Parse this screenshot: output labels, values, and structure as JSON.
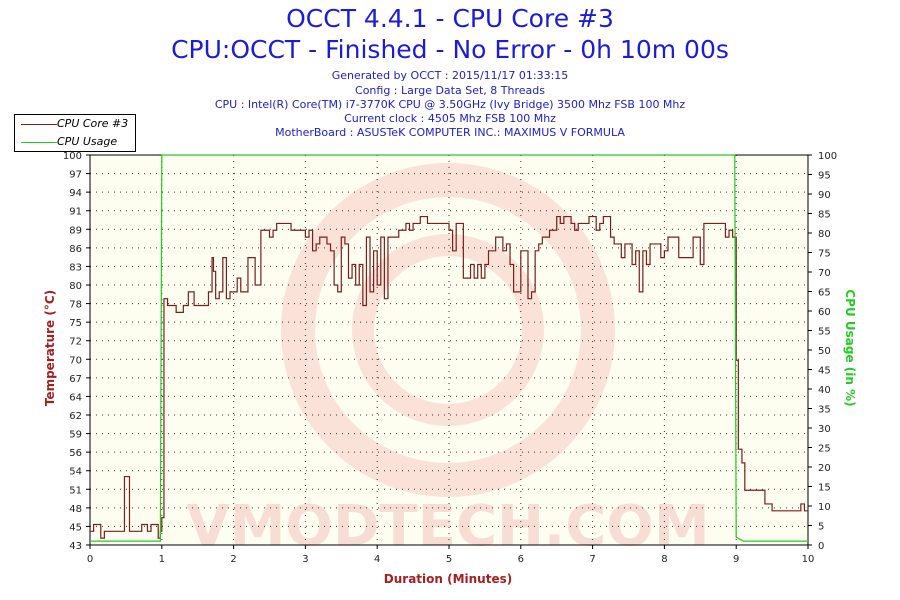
{
  "header": {
    "title_line1": "OCCT 4.4.1 - CPU Core #3",
    "title_line2": "CPU:OCCT - Finished - No Error - 0h 10m 00s",
    "generated_by": "Generated by OCCT : 2015/11/17 01:33:15",
    "config": "Config : Large Data Set, 8 Threads",
    "cpu": "CPU : Intel(R) Core(TM) i7-3770K CPU @ 3.50GHz (Ivy Bridge) 3500 Mhz FSB 100 Mhz",
    "current_clock": "Current clock : 4505 Mhz FSB 100 Mhz",
    "motherboard": "MotherBoard : ASUSTeK COMPUTER INC.: MAXIMUS V FORMULA"
  },
  "watermark_text": "VMODTECH.COM",
  "colors": {
    "title": "#1c1cd6",
    "core_line": "#7a1f1f",
    "usage_line": "#22cc22",
    "left_axis": "#a32020",
    "right_axis": "#22cc22",
    "plot_bg": "#fdfdf0"
  },
  "chart_data": {
    "type": "line",
    "xlabel": "Duration (Minutes)",
    "ylabel_left": "Temperature (°C)",
    "ylabel_right": "CPU Usage (in %)",
    "xlim": [
      0,
      10
    ],
    "ylim_left": [
      43,
      100
    ],
    "ylim_right": [
      0,
      100
    ],
    "x_ticks": [
      "0",
      "1",
      "2",
      "3",
      "4",
      "5",
      "6",
      "7",
      "8",
      "9",
      "10"
    ],
    "left_ticks": [
      "43",
      "45",
      "48",
      "51",
      "54",
      "56",
      "59",
      "62",
      "64",
      "67",
      "70",
      "72",
      "75",
      "78",
      "80",
      "83",
      "86",
      "89",
      "91",
      "94",
      "97",
      "100"
    ],
    "right_ticks": [
      "0",
      "5",
      "10",
      "15",
      "20",
      "25",
      "30",
      "35",
      "40",
      "45",
      "50",
      "55",
      "60",
      "65",
      "70",
      "75",
      "80",
      "85",
      "90",
      "95",
      "100"
    ],
    "grid": true,
    "legend_position": "top-left",
    "series": [
      {
        "name": "CPU Core #3",
        "axis": "left",
        "points": [
          [
            0.0,
            45
          ],
          [
            0.05,
            46
          ],
          [
            0.1,
            46
          ],
          [
            0.15,
            44
          ],
          [
            0.2,
            45
          ],
          [
            0.3,
            45
          ],
          [
            0.45,
            45
          ],
          [
            0.48,
            53
          ],
          [
            0.53,
            53
          ],
          [
            0.55,
            45
          ],
          [
            0.7,
            45
          ],
          [
            0.72,
            46
          ],
          [
            0.8,
            45
          ],
          [
            0.85,
            46
          ],
          [
            0.9,
            46
          ],
          [
            0.95,
            44
          ],
          [
            0.98,
            45
          ],
          [
            1.0,
            47
          ],
          [
            1.03,
            79
          ],
          [
            1.05,
            79
          ],
          [
            1.08,
            78
          ],
          [
            1.15,
            78
          ],
          [
            1.2,
            77
          ],
          [
            1.3,
            78
          ],
          [
            1.35,
            78
          ],
          [
            1.37,
            80
          ],
          [
            1.45,
            78
          ],
          [
            1.55,
            78
          ],
          [
            1.65,
            80
          ],
          [
            1.7,
            85
          ],
          [
            1.72,
            83
          ],
          [
            1.75,
            79
          ],
          [
            1.8,
            80
          ],
          [
            1.85,
            85
          ],
          [
            1.88,
            85
          ],
          [
            1.9,
            79
          ],
          [
            1.95,
            80
          ],
          [
            2.0,
            80
          ],
          [
            2.05,
            82
          ],
          [
            2.1,
            80
          ],
          [
            2.15,
            80
          ],
          [
            2.2,
            85
          ],
          [
            2.25,
            85
          ],
          [
            2.3,
            81
          ],
          [
            2.35,
            81
          ],
          [
            2.38,
            89
          ],
          [
            2.45,
            89
          ],
          [
            2.5,
            88
          ],
          [
            2.55,
            89
          ],
          [
            2.6,
            90
          ],
          [
            2.7,
            90
          ],
          [
            2.8,
            89
          ],
          [
            2.9,
            89
          ],
          [
            3.0,
            88
          ],
          [
            3.05,
            89
          ],
          [
            3.1,
            86
          ],
          [
            3.15,
            87
          ],
          [
            3.2,
            88
          ],
          [
            3.25,
            88
          ],
          [
            3.3,
            87
          ],
          [
            3.35,
            86
          ],
          [
            3.4,
            81
          ],
          [
            3.45,
            80
          ],
          [
            3.5,
            88
          ],
          [
            3.55,
            87
          ],
          [
            3.6,
            82
          ],
          [
            3.65,
            84
          ],
          [
            3.7,
            81
          ],
          [
            3.75,
            84
          ],
          [
            3.8,
            78
          ],
          [
            3.85,
            88
          ],
          [
            3.9,
            80
          ],
          [
            3.95,
            86
          ],
          [
            4.0,
            81
          ],
          [
            4.05,
            88
          ],
          [
            4.1,
            79
          ],
          [
            4.15,
            88
          ],
          [
            4.2,
            88
          ],
          [
            4.25,
            88
          ],
          [
            4.3,
            89
          ],
          [
            4.35,
            89
          ],
          [
            4.4,
            90
          ],
          [
            4.45,
            89
          ],
          [
            4.5,
            90
          ],
          [
            4.6,
            91
          ],
          [
            4.7,
            90
          ],
          [
            4.8,
            90
          ],
          [
            4.9,
            90
          ],
          [
            5.0,
            89
          ],
          [
            5.05,
            86
          ],
          [
            5.1,
            90
          ],
          [
            5.15,
            90
          ],
          [
            5.2,
            82
          ],
          [
            5.25,
            82
          ],
          [
            5.3,
            84
          ],
          [
            5.35,
            82
          ],
          [
            5.4,
            84
          ],
          [
            5.45,
            82
          ],
          [
            5.5,
            84
          ],
          [
            5.55,
            86
          ],
          [
            5.6,
            86
          ],
          [
            5.65,
            88
          ],
          [
            5.7,
            88
          ],
          [
            5.75,
            86
          ],
          [
            5.8,
            87
          ],
          [
            5.85,
            84
          ],
          [
            5.9,
            80
          ],
          [
            5.95,
            80
          ],
          [
            6.0,
            86
          ],
          [
            6.05,
            86
          ],
          [
            6.1,
            79
          ],
          [
            6.15,
            80
          ],
          [
            6.2,
            86
          ],
          [
            6.25,
            87
          ],
          [
            6.3,
            88
          ],
          [
            6.35,
            88
          ],
          [
            6.4,
            89
          ],
          [
            6.5,
            91
          ],
          [
            6.55,
            90
          ],
          [
            6.6,
            91
          ],
          [
            6.65,
            91
          ],
          [
            6.7,
            90
          ],
          [
            6.75,
            89
          ],
          [
            6.8,
            90
          ],
          [
            6.85,
            90
          ],
          [
            6.9,
            90
          ],
          [
            6.95,
            91
          ],
          [
            7.0,
            91
          ],
          [
            7.05,
            89
          ],
          [
            7.1,
            90
          ],
          [
            7.15,
            91
          ],
          [
            7.2,
            91
          ],
          [
            7.25,
            88
          ],
          [
            7.3,
            87
          ],
          [
            7.35,
            87
          ],
          [
            7.4,
            85
          ],
          [
            7.45,
            87
          ],
          [
            7.5,
            87
          ],
          [
            7.55,
            84
          ],
          [
            7.6,
            86
          ],
          [
            7.65,
            80
          ],
          [
            7.7,
            86
          ],
          [
            7.75,
            84
          ],
          [
            7.8,
            87
          ],
          [
            7.85,
            87
          ],
          [
            7.9,
            87
          ],
          [
            7.95,
            85
          ],
          [
            8.0,
            86
          ],
          [
            8.05,
            88
          ],
          [
            8.1,
            88
          ],
          [
            8.2,
            85
          ],
          [
            8.3,
            85
          ],
          [
            8.4,
            88
          ],
          [
            8.45,
            88
          ],
          [
            8.5,
            84
          ],
          [
            8.55,
            90
          ],
          [
            8.6,
            90
          ],
          [
            8.7,
            90
          ],
          [
            8.8,
            90
          ],
          [
            8.85,
            88
          ],
          [
            8.9,
            89
          ],
          [
            8.95,
            88
          ],
          [
            8.98,
            88
          ],
          [
            9.0,
            70
          ],
          [
            9.03,
            57
          ],
          [
            9.08,
            55
          ],
          [
            9.12,
            51
          ],
          [
            9.2,
            51
          ],
          [
            9.3,
            51
          ],
          [
            9.35,
            51
          ],
          [
            9.4,
            49
          ],
          [
            9.5,
            48
          ],
          [
            9.55,
            48
          ],
          [
            9.6,
            48
          ],
          [
            9.7,
            48
          ],
          [
            9.8,
            48
          ],
          [
            9.85,
            48
          ],
          [
            9.9,
            49
          ],
          [
            9.95,
            48
          ],
          [
            10.0,
            48
          ]
        ]
      },
      {
        "name": "CPU Usage",
        "axis": "right",
        "points": [
          [
            0.0,
            1
          ],
          [
            0.1,
            1
          ],
          [
            0.2,
            1
          ],
          [
            0.3,
            1
          ],
          [
            0.4,
            1
          ],
          [
            0.5,
            1
          ],
          [
            0.6,
            1
          ],
          [
            0.7,
            1
          ],
          [
            0.8,
            1
          ],
          [
            0.9,
            1
          ],
          [
            0.98,
            1
          ],
          [
            0.99,
            50
          ],
          [
            1.0,
            100
          ],
          [
            2.0,
            100
          ],
          [
            3.0,
            100
          ],
          [
            4.0,
            100
          ],
          [
            5.0,
            100
          ],
          [
            6.0,
            100
          ],
          [
            7.0,
            100
          ],
          [
            8.0,
            100
          ],
          [
            8.98,
            100
          ],
          [
            8.99,
            50
          ],
          [
            9.0,
            2
          ],
          [
            9.1,
            1
          ],
          [
            9.2,
            1
          ],
          [
            9.3,
            1
          ],
          [
            9.4,
            1
          ],
          [
            9.5,
            1
          ],
          [
            9.6,
            1
          ],
          [
            9.7,
            1
          ],
          [
            9.8,
            1
          ],
          [
            9.9,
            1
          ],
          [
            10.0,
            1
          ]
        ]
      }
    ]
  }
}
